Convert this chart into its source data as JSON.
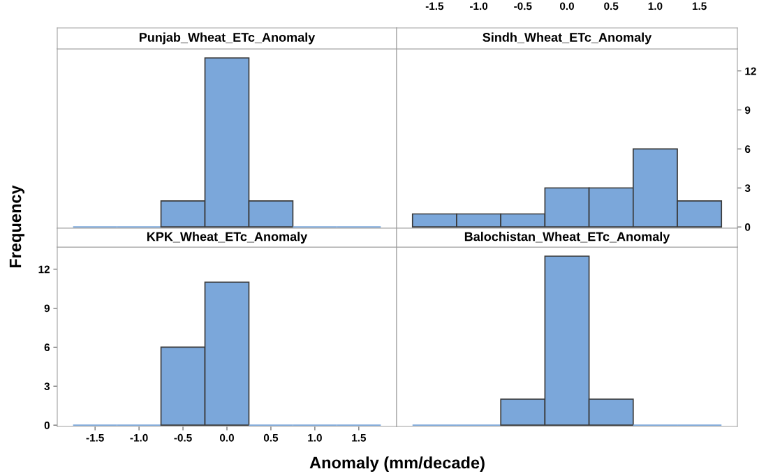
{
  "chart_data": [
    {
      "type": "histogram",
      "title": "Punjab_Wheat_ETc_Anomaly",
      "bins": [
        -1.75,
        -1.25,
        -0.75,
        -0.25,
        0.25,
        0.75,
        1.25,
        1.75
      ],
      "values": [
        0,
        0,
        2,
        13,
        2,
        0,
        0
      ],
      "color": "#7ba7da",
      "xlim": [
        -1.93,
        1.93
      ],
      "ylim": [
        -0.1,
        13.7
      ],
      "tick_labels": false
    },
    {
      "type": "histogram",
      "title": "Sindh_Wheat_ETc_Anomaly",
      "bins": [
        -1.75,
        -1.25,
        -0.75,
        -0.25,
        0.25,
        0.75,
        1.25,
        1.75
      ],
      "values": [
        1,
        1,
        1,
        3,
        3,
        6,
        2
      ],
      "color": "#7ba7da",
      "xlim": [
        -1.93,
        1.93
      ],
      "xticks": [
        -1.5,
        {
          "value": -1,
          "label": "-1.0"
        },
        -0.5,
        {
          "value": 0,
          "label": "0.0"
        },
        0.5,
        {
          "value": 1,
          "label": "1.0"
        },
        1.5
      ],
      "ylim": [
        -0.1,
        13.7
      ],
      "yticks": [
        0,
        3,
        6,
        9,
        12
      ]
    },
    {
      "type": "histogram",
      "title": "KPK_Wheat_ETc_Anomaly",
      "xlabel": "Anomaly (mm/decade)",
      "ylabel": "Frequency",
      "bins": [
        -1.75,
        -1.25,
        -0.75,
        -0.25,
        0.25,
        0.75,
        1.25,
        1.75
      ],
      "values": [
        0,
        0,
        6,
        11,
        0,
        0,
        0
      ],
      "color": "#7ba7da",
      "xlim": [
        -1.93,
        1.93
      ],
      "xticks": [
        -1.5,
        {
          "value": -1,
          "label": "-1.0"
        },
        -0.5,
        {
          "value": 0,
          "label": "0.0"
        },
        0.5,
        {
          "value": 1,
          "label": "1.0"
        },
        1.5
      ],
      "ylim": [
        -0.1,
        13.7
      ],
      "yticks": [
        0,
        3,
        6,
        9,
        12
      ]
    },
    {
      "type": "histogram",
      "title": "Balochistan_Wheat_ETc_Anomaly",
      "bins": [
        -1.75,
        -1.25,
        -0.75,
        -0.25,
        0.25,
        0.75,
        1.25,
        1.75
      ],
      "values": [
        0,
        0,
        2,
        13,
        2,
        0,
        0
      ],
      "color": "#7ba7da",
      "xlim": [
        -1.93,
        1.93
      ],
      "ylim": [
        -0.1,
        13.7
      ],
      "tick_labels": false
    }
  ]
}
